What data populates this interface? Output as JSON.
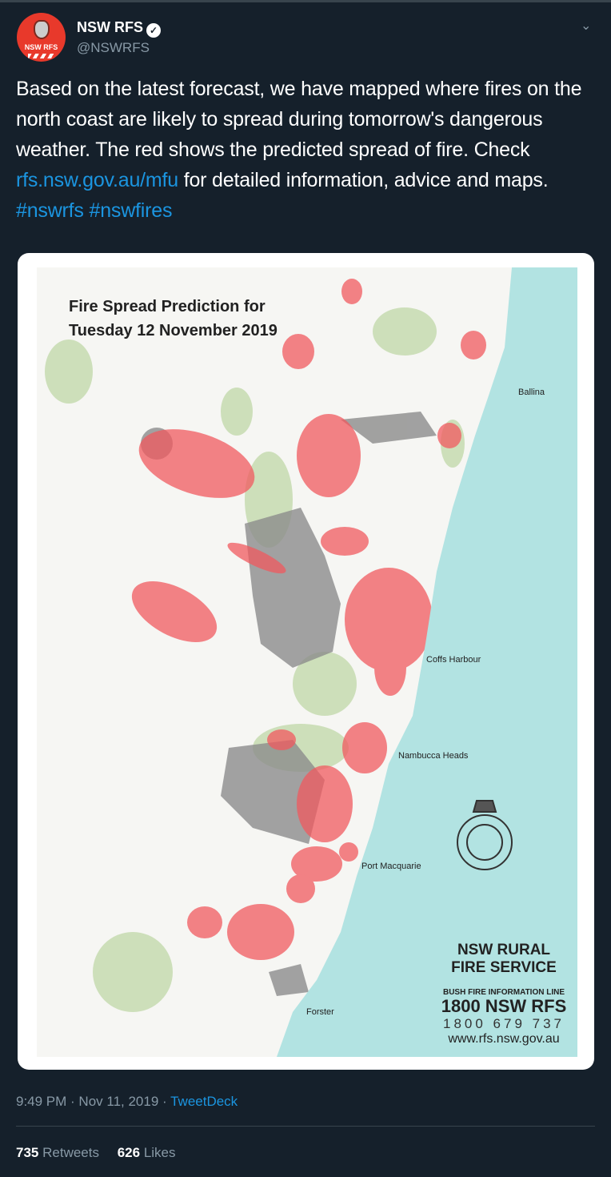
{
  "user": {
    "name": "NSW RFS",
    "handle": "@NSWRFS",
    "avatar_text": "NSW RFS",
    "verified": true
  },
  "tweet": {
    "t1": "Based on the latest forecast, we have mapped where fires on the north coast are likely to spread during tomorrow's dangerous weather. The red shows the predicted spread of fire. Check ",
    "link": "rfs.nsw.gov.au/mfu",
    "t2": " for detailed information, advice and maps. ",
    "tag1": "#nswrfs",
    "tag2": "#nswfires"
  },
  "map": {
    "title1": "Fire Spread Prediction for",
    "title2": "Tuesday 12 November 2019",
    "places": [
      "Ballina",
      "Coffs Harbour",
      "Nambucca Heads",
      "Port Macquarie",
      "Forster"
    ],
    "logo": {
      "org1": "NSW RURAL",
      "org2": "FIRE SERVICE",
      "line": "BUSH FIRE INFORMATION LINE",
      "phone_word": "1800 NSW RFS",
      "phone_num": "1800 679 737",
      "web": "www.rfs.nsw.gov.au"
    },
    "colors": {
      "ocean": "#b2e3e2",
      "fire": "#f05a5f",
      "burnt": "#8c8c8c",
      "forest": "#c9ddb4"
    }
  },
  "meta": {
    "time": "9:49 PM · Nov 11, 2019 · ",
    "source": "TweetDeck"
  },
  "stats": {
    "retweets": "735",
    "retweets_label": "Retweets",
    "likes": "626",
    "likes_label": "Likes"
  },
  "icons": {
    "menu": "chevron-down-icon",
    "verified": "verified-badge-icon"
  }
}
